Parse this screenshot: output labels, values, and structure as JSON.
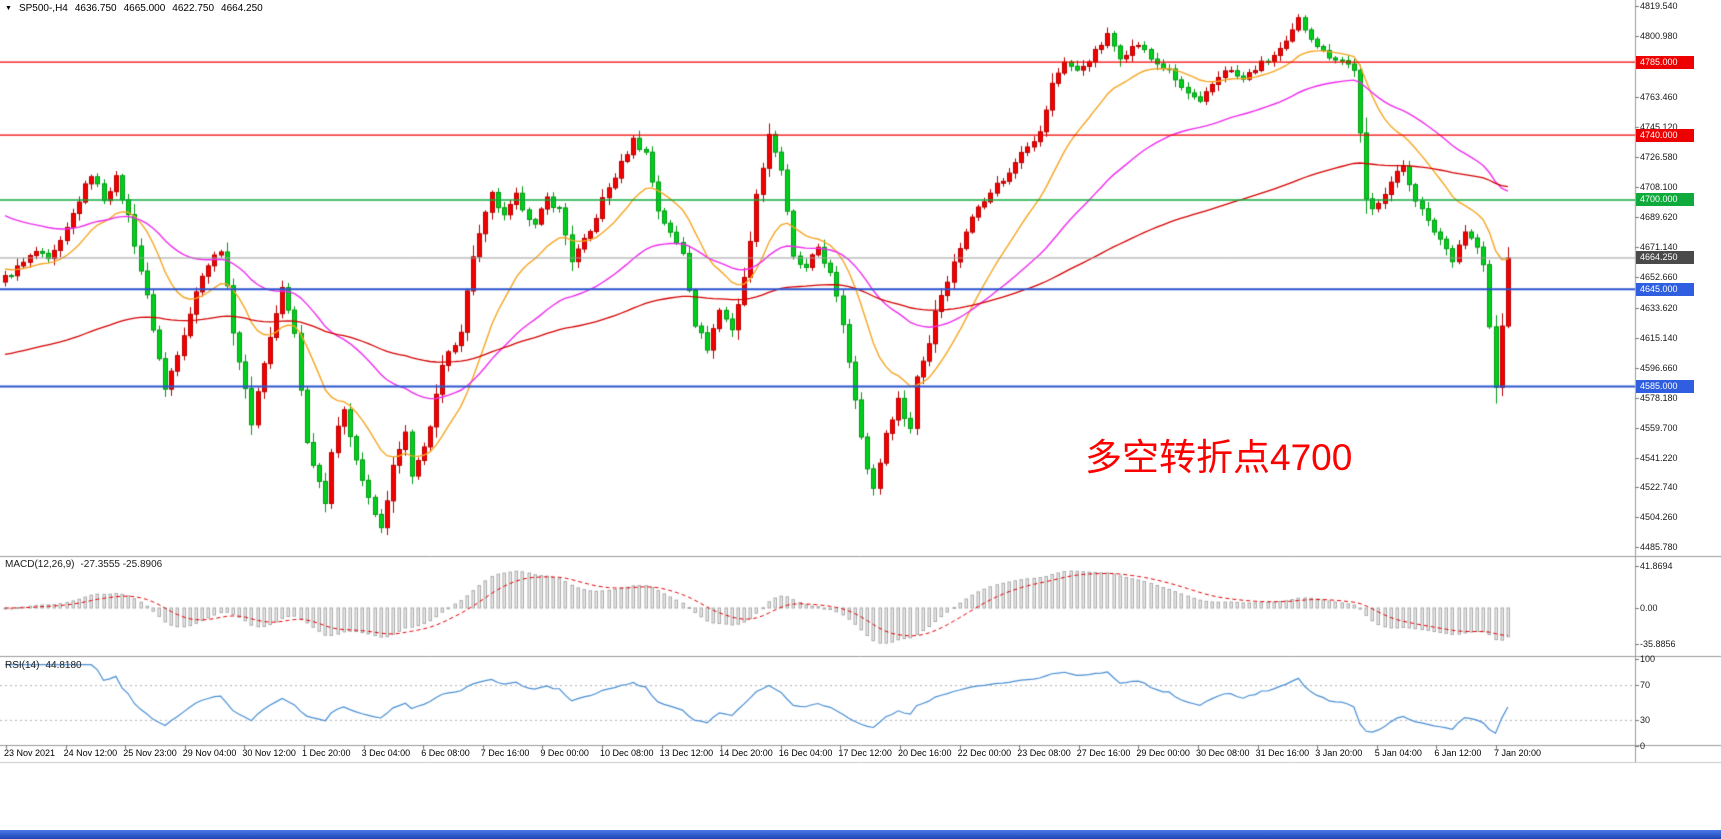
{
  "symbol_bar": {
    "marker": "▼",
    "symbol": "SP500-,H4",
    "open": "4636.750",
    "high": "4665.000",
    "low": "4622.750",
    "close": "4664.250"
  },
  "annotation": {
    "text": "多空转折点4700",
    "color": "#ff0000"
  },
  "macd_panel": {
    "label": "MACD(12,26,9)",
    "values": "-27.3555 -25.8906",
    "ticks": [
      {
        "v": 41.8694,
        "t": "41.8694"
      },
      {
        "v": 0,
        "t": "0.00"
      },
      {
        "v": -35.8856,
        "t": "-35.8856"
      }
    ]
  },
  "rsi_panel": {
    "label": "RSI(14)",
    "values": "44.8180",
    "ticks": [
      {
        "v": 100,
        "t": "100"
      },
      {
        "v": 70,
        "t": "70"
      },
      {
        "v": 30,
        "t": "30"
      },
      {
        "v": 0,
        "t": "0"
      }
    ],
    "level_lines": [
      70,
      30
    ],
    "line_color": "#4a8fd4"
  },
  "price_axis": {
    "ticks": [
      {
        "v": 4819.54,
        "t": "4819.540"
      },
      {
        "v": 4800.98,
        "t": "4800.980"
      },
      {
        "v": 4763.46,
        "t": "4763.460"
      },
      {
        "v": 4745.12,
        "t": "4745.120"
      },
      {
        "v": 4726.58,
        "t": "4726.580"
      },
      {
        "v": 4708.1,
        "t": "4708.100"
      },
      {
        "v": 4689.62,
        "t": "4689.620"
      },
      {
        "v": 4671.14,
        "t": "4671.140"
      },
      {
        "v": 4652.66,
        "t": "4652.660"
      },
      {
        "v": 4633.62,
        "t": "4633.620"
      },
      {
        "v": 4615.14,
        "t": "4615.140"
      },
      {
        "v": 4596.66,
        "t": "4596.660"
      },
      {
        "v": 4578.18,
        "t": "4578.180"
      },
      {
        "v": 4559.7,
        "t": "4559.700"
      },
      {
        "v": 4541.22,
        "t": "4541.220"
      },
      {
        "v": 4522.74,
        "t": "4522.740"
      },
      {
        "v": 4504.26,
        "t": "4504.260"
      },
      {
        "v": 4485.78,
        "t": "4485.780"
      }
    ]
  },
  "levels": [
    {
      "price": 4785.0,
      "label": "4785.000",
      "line": "#ef0000",
      "badge": "#ef0000",
      "width": 1.4
    },
    {
      "price": 4740.0,
      "label": "4740.000",
      "line": "#ef0000",
      "badge": "#ef0000",
      "width": 1.4
    },
    {
      "price": 4700.0,
      "label": "4700.000",
      "line": "#0faa3c",
      "badge": "#0faa3c",
      "width": 1.6
    },
    {
      "price": 4664.25,
      "label": "4664.250",
      "line": "#9b9b9b",
      "badge": "#4a4a4a",
      "width": 1.0
    },
    {
      "price": 4645.0,
      "label": "4645.000",
      "line": "#2c55cf",
      "badge": "#2f5fe0",
      "width": 2.0
    },
    {
      "price": 4585.0,
      "label": "4585.000",
      "line": "#2c55cf",
      "badge": "#2f5fe0",
      "width": 2.0
    }
  ],
  "time_axis": {
    "labels": [
      "23 Nov 2021",
      "24 Nov 12:00",
      "25 Nov 23:00",
      "29 Nov 04:00",
      "30 Nov 12:00",
      "1 Dec 20:00",
      "3 Dec 04:00",
      "6 Dec 08:00",
      "7 Dec 16:00",
      "9 Dec 00:00",
      "10 Dec 08:00",
      "13 Dec 12:00",
      "14 Dec 20:00",
      "16 Dec 04:00",
      "17 Dec 12:00",
      "20 Dec 16:00",
      "22 Dec 00:00",
      "23 Dec 08:00",
      "27 Dec 16:00",
      "29 Dec 00:00",
      "30 Dec 08:00",
      "31 Dec 16:00",
      "3 Jan 20:00",
      "5 Jan 04:00",
      "6 Jan 12:00",
      "7 Jan 20:00"
    ]
  },
  "chart_data": {
    "type": "candlestick",
    "symbol": "SP500-",
    "timeframe": "H4",
    "title": "SP500-,H4",
    "last_ohlc": {
      "open": 4636.75,
      "high": 4665.0,
      "low": 4622.75,
      "close": 4664.25
    },
    "bars": 245,
    "price_range": [
      4480.5,
      4823.3
    ],
    "noise_amp": 2.2,
    "close_waypoints": [
      [
        0,
        4652
      ],
      [
        3,
        4661
      ],
      [
        5,
        4668
      ],
      [
        7,
        4662
      ],
      [
        9,
        4673
      ],
      [
        12,
        4700
      ],
      [
        14,
        4716
      ],
      [
        16,
        4701
      ],
      [
        18,
        4713
      ],
      [
        20,
        4690
      ],
      [
        23,
        4640
      ],
      [
        26,
        4583
      ],
      [
        28,
        4606
      ],
      [
        32,
        4655
      ],
      [
        35,
        4670
      ],
      [
        37,
        4620
      ],
      [
        40,
        4563
      ],
      [
        42,
        4600
      ],
      [
        45,
        4645
      ],
      [
        47,
        4618
      ],
      [
        49,
        4550
      ],
      [
        52,
        4515
      ],
      [
        53,
        4545
      ],
      [
        55,
        4572
      ],
      [
        57,
        4540
      ],
      [
        59,
        4515
      ],
      [
        61,
        4497
      ],
      [
        63,
        4535
      ],
      [
        65,
        4556
      ],
      [
        66,
        4528
      ],
      [
        69,
        4560
      ],
      [
        71,
        4597
      ],
      [
        74,
        4620
      ],
      [
        76,
        4666
      ],
      [
        79,
        4703
      ],
      [
        81,
        4689
      ],
      [
        83,
        4702
      ],
      [
        86,
        4684
      ],
      [
        88,
        4701
      ],
      [
        90,
        4694
      ],
      [
        92,
        4663
      ],
      [
        95,
        4680
      ],
      [
        97,
        4700
      ],
      [
        100,
        4722
      ],
      [
        102,
        4737
      ],
      [
        104,
        4729
      ],
      [
        106,
        4694
      ],
      [
        108,
        4679
      ],
      [
        110,
        4668
      ],
      [
        112,
        4624
      ],
      [
        114,
        4609
      ],
      [
        116,
        4632
      ],
      [
        118,
        4621
      ],
      [
        120,
        4651
      ],
      [
        122,
        4702
      ],
      [
        124,
        4741
      ],
      [
        126,
        4719
      ],
      [
        128,
        4664
      ],
      [
        130,
        4657
      ],
      [
        132,
        4671
      ],
      [
        134,
        4654
      ],
      [
        136,
        4624
      ],
      [
        138,
        4578
      ],
      [
        140,
        4534
      ],
      [
        141,
        4521
      ],
      [
        143,
        4556
      ],
      [
        145,
        4576
      ],
      [
        147,
        4559
      ],
      [
        148,
        4591
      ],
      [
        150,
        4612
      ],
      [
        151,
        4632
      ],
      [
        154,
        4661
      ],
      [
        156,
        4681
      ],
      [
        158,
        4696
      ],
      [
        160,
        4706
      ],
      [
        163,
        4716
      ],
      [
        165,
        4731
      ],
      [
        168,
        4741
      ],
      [
        170,
        4771
      ],
      [
        172,
        4786
      ],
      [
        174,
        4779
      ],
      [
        177,
        4791
      ],
      [
        179,
        4801
      ],
      [
        181,
        4789
      ],
      [
        184,
        4796
      ],
      [
        186,
        4787
      ],
      [
        189,
        4779
      ],
      [
        191,
        4769
      ],
      [
        194,
        4759
      ],
      [
        196,
        4771
      ],
      [
        198,
        4781
      ],
      [
        201,
        4774
      ],
      [
        203,
        4781
      ],
      [
        206,
        4789
      ],
      [
        208,
        4796
      ],
      [
        210,
        4811
      ],
      [
        212,
        4801
      ],
      [
        214,
        4791
      ],
      [
        217,
        4786
      ],
      [
        219,
        4781
      ],
      [
        221,
        4699
      ],
      [
        222,
        4694
      ],
      [
        225,
        4711
      ],
      [
        227,
        4721
      ],
      [
        229,
        4701
      ],
      [
        231,
        4686
      ],
      [
        233,
        4676
      ],
      [
        235,
        4664
      ],
      [
        237,
        4681
      ],
      [
        239,
        4671
      ],
      [
        240,
        4659
      ],
      [
        242,
        4584
      ],
      [
        243,
        4622
      ],
      [
        244,
        4664.25
      ]
    ],
    "colors": {
      "up": "#f40000",
      "up_border": "#b80000",
      "down": "#00d01d",
      "down_border": "#009a12"
    },
    "moving_averages": [
      {
        "name": "ma-fast-orange",
        "period": 16,
        "seed": 4658,
        "color": "#f5a623",
        "width": 1.4
      },
      {
        "name": "ma-mid-magenta",
        "period": 45,
        "seed": 4692,
        "color": "#ee2dee",
        "width": 1.4
      },
      {
        "name": "ma-slow-red",
        "period": 130,
        "seed": 4604,
        "color": "#d40000",
        "width": 1.3
      }
    ],
    "macd": {
      "fast": 12,
      "slow": 26,
      "signal": 9,
      "signal_color": "#e00000",
      "hist_fill": "#e9e9e9",
      "hist_border": "#ababab"
    },
    "rsi": {
      "period": 14,
      "color": "#4a8fd4",
      "levels": [
        70,
        30
      ]
    }
  }
}
